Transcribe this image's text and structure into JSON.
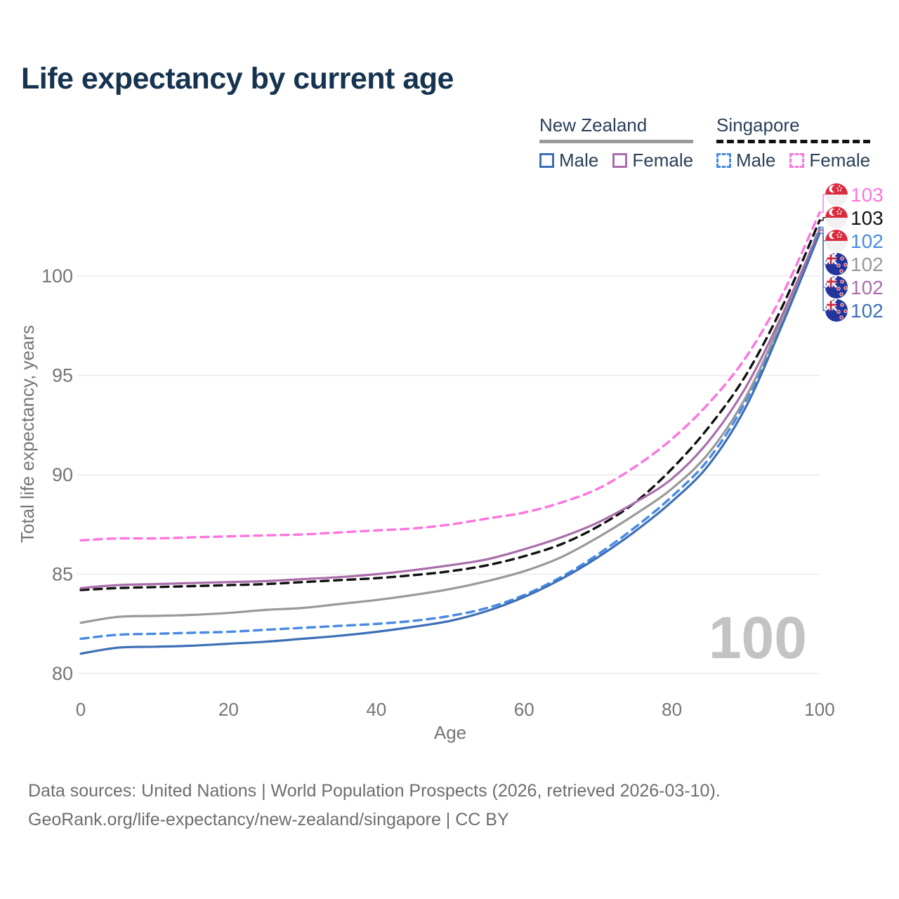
{
  "title": "Life expectancy by current age",
  "legend": {
    "groups": [
      {
        "label": "New Zealand",
        "line_style": "solid",
        "line_color": "#999999",
        "items": [
          {
            "label": "Male",
            "color": "#3d6fb6",
            "dashed": false
          },
          {
            "label": "Female",
            "color": "#a96dab",
            "dashed": false
          }
        ]
      },
      {
        "label": "Singapore",
        "line_style": "dashed",
        "line_color": "#111111",
        "items": [
          {
            "label": "Male",
            "color": "#4789e3",
            "dashed": true
          },
          {
            "label": "Female",
            "color": "#fd74de",
            "dashed": true
          }
        ]
      }
    ]
  },
  "age_watermark": "100",
  "chart_data": {
    "type": "line",
    "title": "Life expectancy by current age",
    "xlabel": "Age",
    "ylabel": "Total life expectancy, years",
    "xlim": [
      0,
      100
    ],
    "ylim": [
      80,
      103.5
    ],
    "x_ticks": [
      0,
      20,
      40,
      60,
      80,
      100
    ],
    "y_ticks": [
      80,
      85,
      90,
      95,
      100
    ],
    "grid": "horizontal",
    "legend_position": "top-right",
    "x": [
      0,
      5,
      10,
      15,
      20,
      25,
      30,
      35,
      40,
      45,
      50,
      55,
      60,
      65,
      70,
      75,
      80,
      85,
      90,
      95,
      100
    ],
    "series": [
      {
        "name": "Singapore Female",
        "country": "Singapore",
        "sex": "Female",
        "color": "#fd74de",
        "dashed": true,
        "flag": "sg",
        "end_label": "103",
        "values": [
          86.7,
          86.8,
          86.8,
          86.85,
          86.9,
          86.95,
          87.0,
          87.1,
          87.2,
          87.3,
          87.5,
          87.8,
          88.1,
          88.6,
          89.3,
          90.4,
          91.8,
          93.6,
          95.9,
          99.1,
          103.2
        ]
      },
      {
        "name": "Singapore",
        "country": "Singapore",
        "sex": "Both",
        "color": "#111111",
        "dashed": true,
        "flag": "sg",
        "end_label": "103",
        "values": [
          84.2,
          84.3,
          84.35,
          84.4,
          84.45,
          84.5,
          84.6,
          84.7,
          84.8,
          84.95,
          85.15,
          85.45,
          85.9,
          86.5,
          87.4,
          88.6,
          90.3,
          92.4,
          95.0,
          98.5,
          102.8
        ]
      },
      {
        "name": "Singapore Male",
        "country": "Singapore",
        "sex": "Male",
        "color": "#4789e3",
        "dashed": true,
        "flag": "sg",
        "end_label": "102",
        "values": [
          81.75,
          81.95,
          82.0,
          82.05,
          82.1,
          82.2,
          82.3,
          82.4,
          82.5,
          82.65,
          82.9,
          83.3,
          83.95,
          84.85,
          86.0,
          87.35,
          88.9,
          90.8,
          93.7,
          97.8,
          102.45
        ]
      },
      {
        "name": "New Zealand",
        "country": "New Zealand",
        "sex": "Both",
        "color": "#999999",
        "dashed": false,
        "flag": "nz",
        "end_label": "102",
        "values": [
          82.55,
          82.85,
          82.9,
          82.95,
          83.05,
          83.2,
          83.3,
          83.5,
          83.7,
          83.95,
          84.25,
          84.65,
          85.15,
          85.85,
          86.85,
          88.0,
          89.3,
          91.1,
          93.9,
          97.9,
          102.35
        ]
      },
      {
        "name": "New Zealand Female",
        "country": "New Zealand",
        "sex": "Female",
        "color": "#a96dab",
        "dashed": false,
        "flag": "nz",
        "end_label": "102",
        "values": [
          84.3,
          84.45,
          84.5,
          84.55,
          84.6,
          84.65,
          84.75,
          84.85,
          85.0,
          85.2,
          85.45,
          85.75,
          86.25,
          86.85,
          87.6,
          88.6,
          89.8,
          91.7,
          94.4,
          98.1,
          102.3
        ]
      },
      {
        "name": "New Zealand Male",
        "country": "New Zealand",
        "sex": "Male",
        "color": "#3d6fb6",
        "dashed": false,
        "flag": "nz",
        "end_label": "102",
        "values": [
          81.0,
          81.3,
          81.35,
          81.4,
          81.5,
          81.6,
          81.75,
          81.9,
          82.1,
          82.35,
          82.65,
          83.15,
          83.85,
          84.75,
          85.85,
          87.15,
          88.65,
          90.5,
          93.4,
          97.6,
          102.15
        ]
      }
    ]
  },
  "footer": {
    "line1": "Data sources: United Nations | World Population Prospects (2026, retrieved 2026-03-10).",
    "line2": "GeoRank.org/life-expectancy/new-zealand/singapore | CC BY"
  }
}
